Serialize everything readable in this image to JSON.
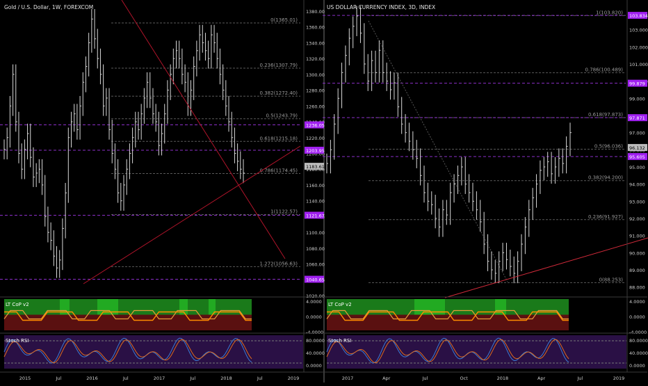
{
  "colors": {
    "background": "#000000",
    "panel_divider": "#3a3a3a",
    "price_bars": "#d9d9d9",
    "fib_level": "#5a5a5a",
    "purple_level": "#8b2fc9",
    "price_label_purple": "#a020f0",
    "trendline": "#b0142a",
    "dashed_trend": "#555555",
    "cop_green": "#1a7a1a",
    "cop_red": "#5a1010",
    "cop_bright_green": "#22aa22",
    "cop_orange": "#ff8c00",
    "cop_orange_light": "#e59b3a",
    "rsi_bg": "#2a1045",
    "rsi_k": "#3a7bd5",
    "rsi_d": "#e06a1c"
  },
  "chart_data": [
    {
      "type": "candlestick",
      "title": "Gold / U.S. Dollar, 1W, FOREXCOM",
      "y_axis_ticks": [
        "1380.00",
        "1360.00",
        "1340.00",
        "1320.00",
        "1300.00",
        "1280.00",
        "1260.00",
        "1240.00",
        "1220.00",
        "1200.00",
        "1180.00",
        "1160.00",
        "1140.00",
        "1120.00",
        "1100.00",
        "1080.00",
        "1060.00",
        "1040.00",
        "1020.00"
      ],
      "ylim": [
        1020,
        1380
      ],
      "x_axis_labels": [
        "2015",
        "Jul",
        "2016",
        "Jul",
        "2017",
        "Jul",
        "2018",
        "Jul",
        "2019"
      ],
      "fib_levels": [
        {
          "label": "0(1365.01)",
          "value": 1365.01
        },
        {
          "label": "0.236(1307.79)",
          "value": 1307.79
        },
        {
          "label": "0.382(1272.40)",
          "value": 1272.4
        },
        {
          "label": "0.5(1243.79)",
          "value": 1243.79
        },
        {
          "label": "0.618(1215.18)",
          "value": 1215.18
        },
        {
          "label": "0.786(1174.45)",
          "value": 1174.45
        },
        {
          "label": "1(1122.57)",
          "value": 1122.57
        },
        {
          "label": "1.272(1056.63)",
          "value": 1056.63
        }
      ],
      "horizontal_levels": [
        {
          "label": "1236.05",
          "value": 1236.05
        },
        {
          "label": "1203.95",
          "value": 1203.95
        },
        {
          "label": "1121.67",
          "value": 1121.67
        },
        {
          "label": "1040.65",
          "value": 1040.65
        }
      ],
      "last_price": {
        "label": "1183.61",
        "value": 1183.61
      },
      "series": [
        {
          "points": [
            1205,
            1220,
            1260,
            1300,
            1240,
            1200,
            1180,
            1205,
            1225,
            1195,
            1170,
            1175,
            1180,
            1160,
            1120,
            1100,
            1090,
            1070,
            1055,
            1065,
            1105,
            1150,
            1220,
            1240,
            1250,
            1230,
            1260,
            1290,
            1310,
            1340,
            1370,
            1345,
            1320,
            1300,
            1260,
            1270,
            1230,
            1200,
            1180,
            1150,
            1140,
            1160,
            1180,
            1200,
            1220,
            1240,
            1230,
            1250,
            1270,
            1290,
            1270,
            1250,
            1240,
            1210,
            1225,
            1250,
            1280,
            1300,
            1320,
            1330,
            1320,
            1300,
            1290,
            1260,
            1280,
            1310,
            1330,
            1350,
            1340,
            1330,
            1320,
            1350,
            1340,
            1320,
            1300,
            1280,
            1260,
            1240,
            1220,
            1200,
            1190,
            1180,
            1175
          ]
        }
      ]
    },
    {
      "type": "candlestick",
      "title": "US DOLLAR CURRENCY INDEX, 3D, INDEX",
      "y_axis_ticks": [
        "103.000",
        "102.000",
        "101.000",
        "100.000",
        "99.000",
        "98.000",
        "97.000",
        "96.000",
        "95.000",
        "94.000",
        "93.000",
        "92.000",
        "91.000",
        "90.000",
        "89.000",
        "88.000"
      ],
      "ylim": [
        87.5,
        104.0
      ],
      "x_axis_labels": [
        "2017",
        "Apr",
        "Jul",
        "Oct",
        "2018",
        "Apr",
        "Jul",
        "2019"
      ],
      "fib_levels": [
        {
          "label": "1(103.820)",
          "value": 103.82
        },
        {
          "label": "0.786(100.489)",
          "value": 100.489
        },
        {
          "label": "0.618(97.873)",
          "value": 97.873
        },
        {
          "label": "0.5(96.036)",
          "value": 96.036
        },
        {
          "label": "0.382(94.200)",
          "value": 94.2
        },
        {
          "label": "0.236(91.927)",
          "value": 91.927
        },
        {
          "label": "0(88.253)",
          "value": 88.253
        }
      ],
      "horizontal_levels": [
        {
          "label": "103.834",
          "value": 103.834
        },
        {
          "label": "99.879",
          "value": 99.879
        },
        {
          "label": "97.871",
          "value": 97.871
        },
        {
          "label": "95.605",
          "value": 95.605
        }
      ],
      "last_price": {
        "label": "96.132",
        "value": 96.132
      },
      "series": [
        {
          "points": [
            95.2,
            96.0,
            97.5,
            99.0,
            100.5,
            101.5,
            102.5,
            103.2,
            103.8,
            102.8,
            101.0,
            100.0,
            101.2,
            100.5,
            101.8,
            100.5,
            100.0,
            99.5,
            99.9,
            98.5,
            97.5,
            97.0,
            96.5,
            96.0,
            95.5,
            94.5,
            93.5,
            93.0,
            92.8,
            92.0,
            91.5,
            92.5,
            92.2,
            93.5,
            94.0,
            94.5,
            95.0,
            94.0,
            93.5,
            93.0,
            92.5,
            91.8,
            90.5,
            89.5,
            89.0,
            88.8,
            89.5,
            90.0,
            89.6,
            89.2,
            88.8,
            89.5,
            90.5,
            91.5,
            92.5,
            93.2,
            94.0,
            94.8,
            95.0,
            95.3,
            94.6,
            95.0,
            95.5,
            95.2,
            96.2,
            97.0
          ]
        }
      ]
    }
  ],
  "indicators": {
    "cop_label": "LT CoP v2",
    "cop_ticks": [
      "4.0000",
      "0.0000",
      "-4.0000"
    ],
    "rsi_label": "Stoch RSI",
    "rsi_ticks": [
      "80.0000",
      "40.0000",
      "0.0000"
    ]
  }
}
